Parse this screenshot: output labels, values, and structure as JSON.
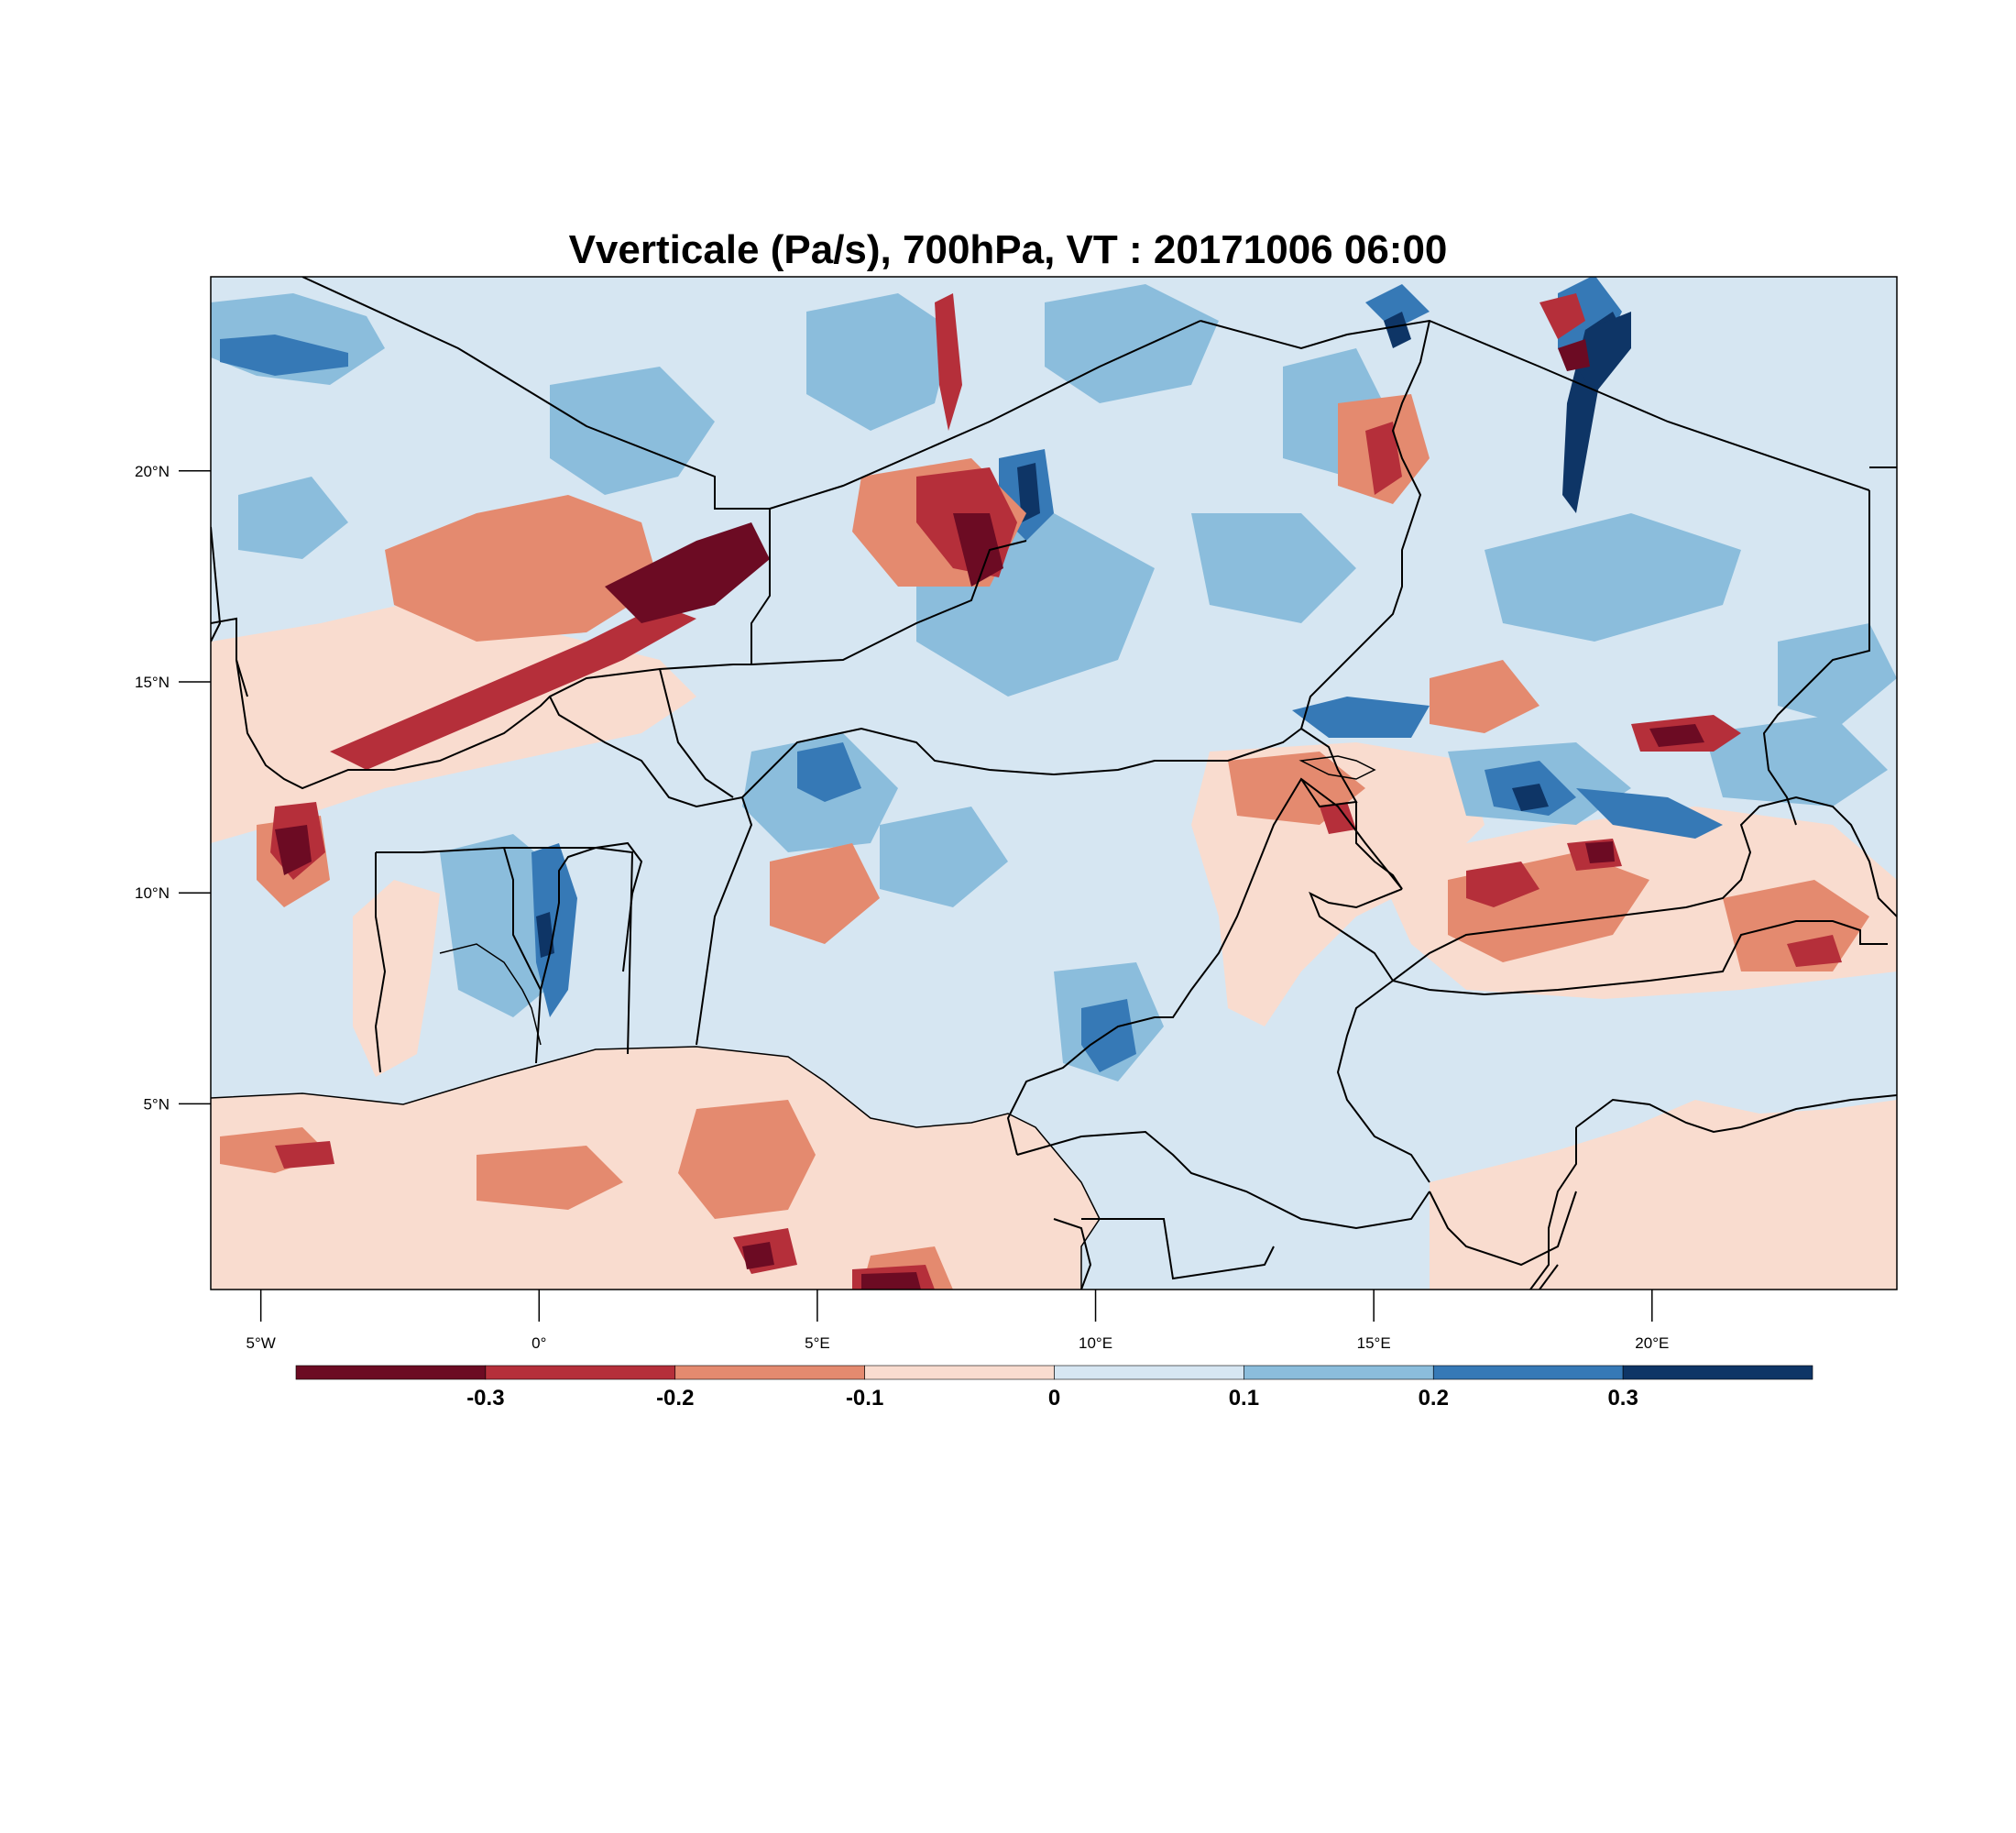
{
  "title": "Vverticale (Pa/s), 700hPa, VT : 20171006  06:00",
  "map": {
    "lon_range": [
      -5.9,
      24.4
    ],
    "lat_range": [
      0.6,
      24.6
    ],
    "lat_ticks": [
      {
        "value": 20,
        "label": "20°N"
      },
      {
        "value": 15,
        "label": "15°N"
      },
      {
        "value": 10,
        "label": "10°N"
      },
      {
        "value": 5,
        "label": "5°N"
      }
    ],
    "lon_ticks": [
      {
        "value": -5,
        "label": "5°W"
      },
      {
        "value": 0,
        "label": "0°"
      },
      {
        "value": 5,
        "label": "5°E"
      },
      {
        "value": 10,
        "label": "10°E"
      },
      {
        "value": 15,
        "label": "15°E"
      },
      {
        "value": 20,
        "label": "20°E"
      }
    ],
    "background_color": "#d6e6f2",
    "ocean_color": "#f9dccf",
    "border_color": "#000000"
  },
  "colorbar": {
    "colors": [
      "#6c0b23",
      "#b52f3a",
      "#e48a6f",
      "#f9dccf",
      "#d6e6f2",
      "#8bbddc",
      "#3679b6",
      "#0e3566"
    ],
    "labels": [
      {
        "value": -0.3,
        "label": "-0.3"
      },
      {
        "value": -0.2,
        "label": "-0.2"
      },
      {
        "value": -0.1,
        "label": "-0.1"
      },
      {
        "value": 0,
        "label": "0"
      },
      {
        "value": 0.1,
        "label": "0.1"
      },
      {
        "value": 0.2,
        "label": "0.2"
      },
      {
        "value": 0.3,
        "label": "0.3"
      }
    ]
  }
}
